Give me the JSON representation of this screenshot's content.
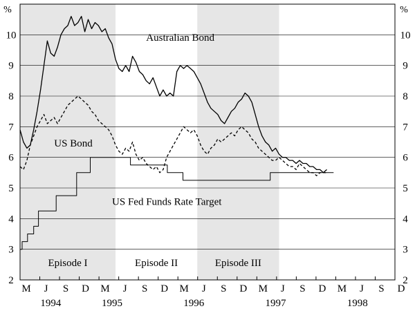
{
  "chart_data": {
    "type": "line",
    "title": "",
    "ylabel_left": "%",
    "ylabel_right": "%",
    "y_ticks": [
      2,
      3,
      4,
      5,
      6,
      7,
      8,
      9,
      10
    ],
    "ylim": [
      2,
      11
    ],
    "xlim_months": [
      0,
      55
    ],
    "x_start": "1994-03",
    "month_ticks": [
      "M",
      "J",
      "S",
      "D",
      "M",
      "J",
      "S",
      "D",
      "M",
      "J",
      "S",
      "D",
      "M",
      "J",
      "S",
      "D",
      "M",
      "J",
      "S",
      "D"
    ],
    "years": [
      {
        "label": "1994",
        "center_month": 4.5
      },
      {
        "label": "1995",
        "center_month": 13.5
      },
      {
        "label": "1996",
        "center_month": 25.5
      },
      {
        "label": "1997",
        "center_month": 37.5
      },
      {
        "label": "1998",
        "center_month": 49.5
      }
    ],
    "episodes": [
      {
        "label": "Episode I",
        "start_month": 0,
        "end_month": 14,
        "shaded": true
      },
      {
        "label": "Episode II",
        "start_month": 14,
        "end_month": 26,
        "shaded": false
      },
      {
        "label": "Episode III",
        "start_month": 26,
        "end_month": 38,
        "shaded": true
      }
    ],
    "series": [
      {
        "name": "Australian Bond",
        "style": "solid",
        "color": "#000000",
        "points": [
          [
            0,
            6.9
          ],
          [
            0.5,
            6.5
          ],
          [
            1,
            6.3
          ],
          [
            1.5,
            6.4
          ],
          [
            2,
            6.9
          ],
          [
            2.5,
            7.5
          ],
          [
            3,
            8.2
          ],
          [
            3.5,
            9.0
          ],
          [
            4,
            9.8
          ],
          [
            4.5,
            9.4
          ],
          [
            5,
            9.3
          ],
          [
            5.5,
            9.6
          ],
          [
            6,
            10.0
          ],
          [
            6.5,
            10.2
          ],
          [
            7,
            10.3
          ],
          [
            7.5,
            10.6
          ],
          [
            8,
            10.3
          ],
          [
            8.5,
            10.4
          ],
          [
            9,
            10.6
          ],
          [
            9.5,
            10.1
          ],
          [
            10,
            10.5
          ],
          [
            10.5,
            10.2
          ],
          [
            11,
            10.4
          ],
          [
            11.5,
            10.3
          ],
          [
            12,
            10.1
          ],
          [
            12.5,
            10.2
          ],
          [
            13,
            9.9
          ],
          [
            13.5,
            9.7
          ],
          [
            14,
            9.2
          ],
          [
            14.5,
            8.9
          ],
          [
            15,
            8.8
          ],
          [
            15.5,
            9.0
          ],
          [
            16,
            8.8
          ],
          [
            16.5,
            9.3
          ],
          [
            17,
            9.1
          ],
          [
            17.5,
            8.8
          ],
          [
            18,
            8.7
          ],
          [
            18.5,
            8.5
          ],
          [
            19,
            8.4
          ],
          [
            19.5,
            8.6
          ],
          [
            20,
            8.3
          ],
          [
            20.5,
            8.0
          ],
          [
            21,
            8.2
          ],
          [
            21.5,
            8.0
          ],
          [
            22,
            8.1
          ],
          [
            22.5,
            8.0
          ],
          [
            23,
            8.8
          ],
          [
            23.5,
            9.0
          ],
          [
            24,
            8.9
          ],
          [
            24.5,
            9.0
          ],
          [
            25,
            8.9
          ],
          [
            25.5,
            8.8
          ],
          [
            26,
            8.6
          ],
          [
            26.5,
            8.4
          ],
          [
            27,
            8.1
          ],
          [
            27.5,
            7.8
          ],
          [
            28,
            7.6
          ],
          [
            28.5,
            7.5
          ],
          [
            29,
            7.4
          ],
          [
            29.5,
            7.2
          ],
          [
            30,
            7.1
          ],
          [
            30.5,
            7.3
          ],
          [
            31,
            7.5
          ],
          [
            31.5,
            7.6
          ],
          [
            32,
            7.8
          ],
          [
            32.5,
            7.9
          ],
          [
            33,
            8.1
          ],
          [
            33.5,
            8.0
          ],
          [
            34,
            7.8
          ],
          [
            34.5,
            7.4
          ],
          [
            35,
            7.0
          ],
          [
            35.5,
            6.7
          ],
          [
            36,
            6.5
          ],
          [
            36.5,
            6.4
          ],
          [
            37,
            6.2
          ],
          [
            37.5,
            6.3
          ],
          [
            38,
            6.1
          ],
          [
            38.5,
            6.0
          ],
          [
            39,
            6.0
          ],
          [
            39.5,
            5.9
          ],
          [
            40,
            5.9
          ],
          [
            40.5,
            5.8
          ],
          [
            41,
            5.9
          ],
          [
            41.5,
            5.8
          ],
          [
            42,
            5.8
          ],
          [
            42.5,
            5.7
          ],
          [
            43,
            5.7
          ],
          [
            43.5,
            5.6
          ],
          [
            44,
            5.6
          ],
          [
            44.5,
            5.5
          ],
          [
            45,
            5.6
          ]
        ]
      },
      {
        "name": "US Bond",
        "style": "dashed",
        "color": "#000000",
        "points": [
          [
            0,
            5.7
          ],
          [
            0.5,
            5.6
          ],
          [
            1,
            5.9
          ],
          [
            1.5,
            6.4
          ],
          [
            2,
            6.7
          ],
          [
            2.5,
            7.0
          ],
          [
            3,
            7.2
          ],
          [
            3.5,
            7.4
          ],
          [
            4,
            7.1
          ],
          [
            4.5,
            7.2
          ],
          [
            5,
            7.3
          ],
          [
            5.5,
            7.1
          ],
          [
            6,
            7.3
          ],
          [
            6.5,
            7.5
          ],
          [
            7,
            7.7
          ],
          [
            7.5,
            7.8
          ],
          [
            8,
            7.9
          ],
          [
            8.5,
            8.0
          ],
          [
            9,
            7.9
          ],
          [
            9.5,
            7.8
          ],
          [
            10,
            7.7
          ],
          [
            10.5,
            7.5
          ],
          [
            11,
            7.4
          ],
          [
            11.5,
            7.2
          ],
          [
            12,
            7.1
          ],
          [
            12.5,
            7.0
          ],
          [
            13,
            6.9
          ],
          [
            13.5,
            6.7
          ],
          [
            14,
            6.4
          ],
          [
            14.5,
            6.2
          ],
          [
            15,
            6.1
          ],
          [
            15.5,
            6.3
          ],
          [
            16,
            6.2
          ],
          [
            16.5,
            6.5
          ],
          [
            17,
            6.1
          ],
          [
            17.5,
            5.9
          ],
          [
            18,
            6.0
          ],
          [
            18.5,
            5.8
          ],
          [
            19,
            5.7
          ],
          [
            19.5,
            5.6
          ],
          [
            20,
            5.7
          ],
          [
            20.5,
            5.5
          ],
          [
            21,
            5.6
          ],
          [
            21.5,
            6.0
          ],
          [
            22,
            6.2
          ],
          [
            22.5,
            6.4
          ],
          [
            23,
            6.6
          ],
          [
            23.5,
            6.8
          ],
          [
            24,
            7.0
          ],
          [
            24.5,
            6.9
          ],
          [
            25,
            6.8
          ],
          [
            25.5,
            6.9
          ],
          [
            26,
            6.7
          ],
          [
            26.5,
            6.4
          ],
          [
            27,
            6.2
          ],
          [
            27.5,
            6.1
          ],
          [
            28,
            6.3
          ],
          [
            28.5,
            6.4
          ],
          [
            29,
            6.6
          ],
          [
            29.5,
            6.5
          ],
          [
            30,
            6.6
          ],
          [
            30.5,
            6.7
          ],
          [
            31,
            6.8
          ],
          [
            31.5,
            6.7
          ],
          [
            32,
            6.9
          ],
          [
            32.5,
            7.0
          ],
          [
            33,
            6.9
          ],
          [
            33.5,
            6.8
          ],
          [
            34,
            6.6
          ],
          [
            34.5,
            6.5
          ],
          [
            35,
            6.3
          ],
          [
            35.5,
            6.2
          ],
          [
            36,
            6.1
          ],
          [
            36.5,
            6.0
          ],
          [
            37,
            5.9
          ],
          [
            37.5,
            5.9
          ],
          [
            38,
            6.0
          ],
          [
            38.5,
            5.9
          ],
          [
            39,
            5.8
          ],
          [
            39.5,
            5.7
          ],
          [
            40,
            5.7
          ],
          [
            40.5,
            5.6
          ],
          [
            41,
            5.8
          ],
          [
            41.5,
            5.7
          ],
          [
            42,
            5.6
          ],
          [
            42.5,
            5.5
          ],
          [
            43,
            5.5
          ],
          [
            43.5,
            5.4
          ],
          [
            44,
            5.5
          ],
          [
            44.5,
            5.5
          ],
          [
            45,
            5.5
          ]
        ]
      },
      {
        "name": "US Fed Funds Rate Target",
        "style": "step",
        "color": "#000000",
        "points": [
          [
            0,
            3.0
          ],
          [
            0.3,
            3.25
          ],
          [
            1.1,
            3.5
          ],
          [
            2.0,
            3.75
          ],
          [
            2.7,
            4.25
          ],
          [
            5.3,
            4.75
          ],
          [
            8.3,
            5.5
          ],
          [
            10.3,
            6.0
          ],
          [
            16.2,
            5.75
          ],
          [
            21.6,
            5.5
          ],
          [
            23.9,
            5.25
          ],
          [
            36.7,
            5.5
          ],
          [
            46.0,
            5.5
          ]
        ]
      }
    ],
    "annotations": [
      {
        "text": "Australian Bond",
        "month": 18.5,
        "value": 9.8
      },
      {
        "text": "US Bond",
        "month": 5.0,
        "value": 6.35
      },
      {
        "text": "US Fed Funds Rate Target",
        "month": 13.5,
        "value": 4.45
      }
    ],
    "colors": {
      "shade": "#e6e6e6",
      "line": "#000000",
      "grid": "#000000"
    }
  }
}
